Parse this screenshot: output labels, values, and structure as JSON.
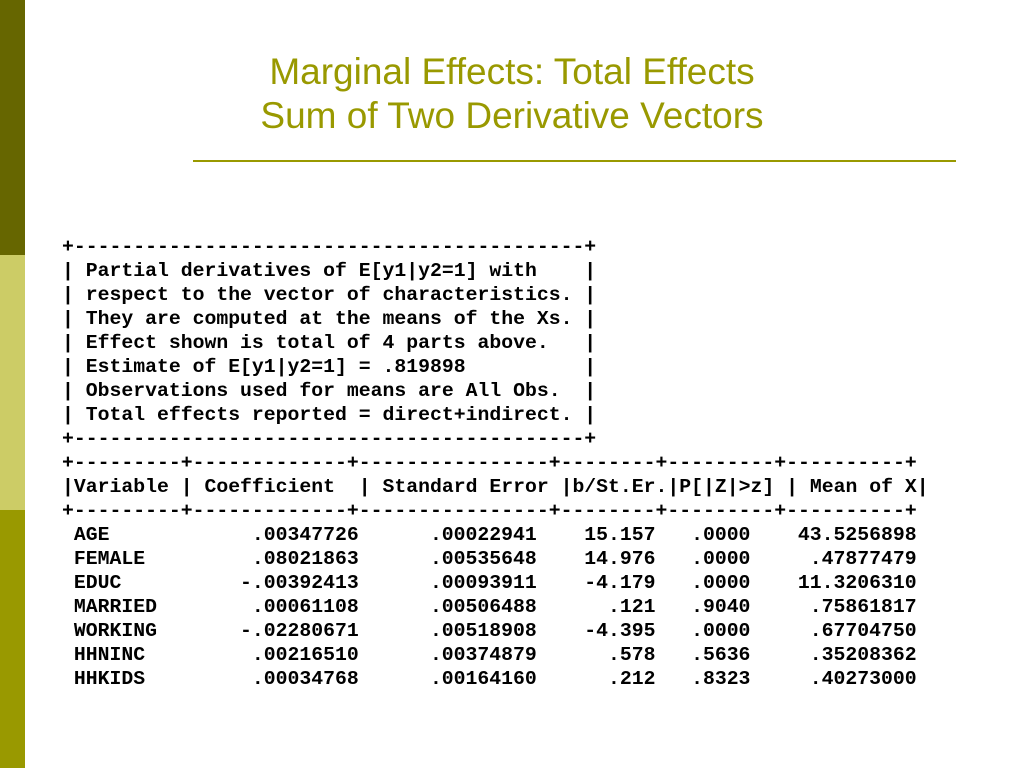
{
  "title": [
    "Marginal Effects: Total Effects",
    "Sum of Two Derivative Vectors"
  ],
  "output": {
    "box_lines": [
      "+-------------------------------------------+",
      "| Partial derivatives of E[y1|y2=1] with    |",
      "| respect to the vector of characteristics. |",
      "| They are computed at the means of the Xs. |",
      "| Effect shown is total of 4 parts above.   |",
      "| Estimate of E[y1|y2=1] = .819898          |",
      "| Observations used for means are All Obs.  |",
      "| Total effects reported = direct+indirect. |",
      "+-------------------------------------------+"
    ],
    "table_rule_top": "+---------+-------------+----------------+--------+---------+----------+",
    "table_header": "|Variable | Coefficient  | Standard Error |b/St.Er.|P[|Z|>z] | Mean of X|",
    "table_rule_bottom": "+---------+-------------+----------------+--------+---------+----------+",
    "rows": [
      [
        "AGE",
        ".00347726",
        ".00022941",
        "15.157",
        ".0000",
        "43.5256898"
      ],
      [
        "FEMALE",
        ".08021863",
        ".00535648",
        "14.976",
        ".0000",
        ".47877479"
      ],
      [
        "EDUC",
        "-.00392413",
        ".00093911",
        "-4.179",
        ".0000",
        "11.3206310"
      ],
      [
        "MARRIED",
        ".00061108",
        ".00506488",
        ".121",
        ".9040",
        ".75861817"
      ],
      [
        "WORKING",
        "-.02280671",
        ".00518908",
        "-4.395",
        ".0000",
        ".67704750"
      ],
      [
        "HHNINC",
        ".00216510",
        ".00374879",
        ".578",
        ".5636",
        ".35208362"
      ],
      [
        "HHKIDS",
        ".00034768",
        ".00164160",
        ".212",
        ".8323",
        ".40273000"
      ]
    ]
  }
}
